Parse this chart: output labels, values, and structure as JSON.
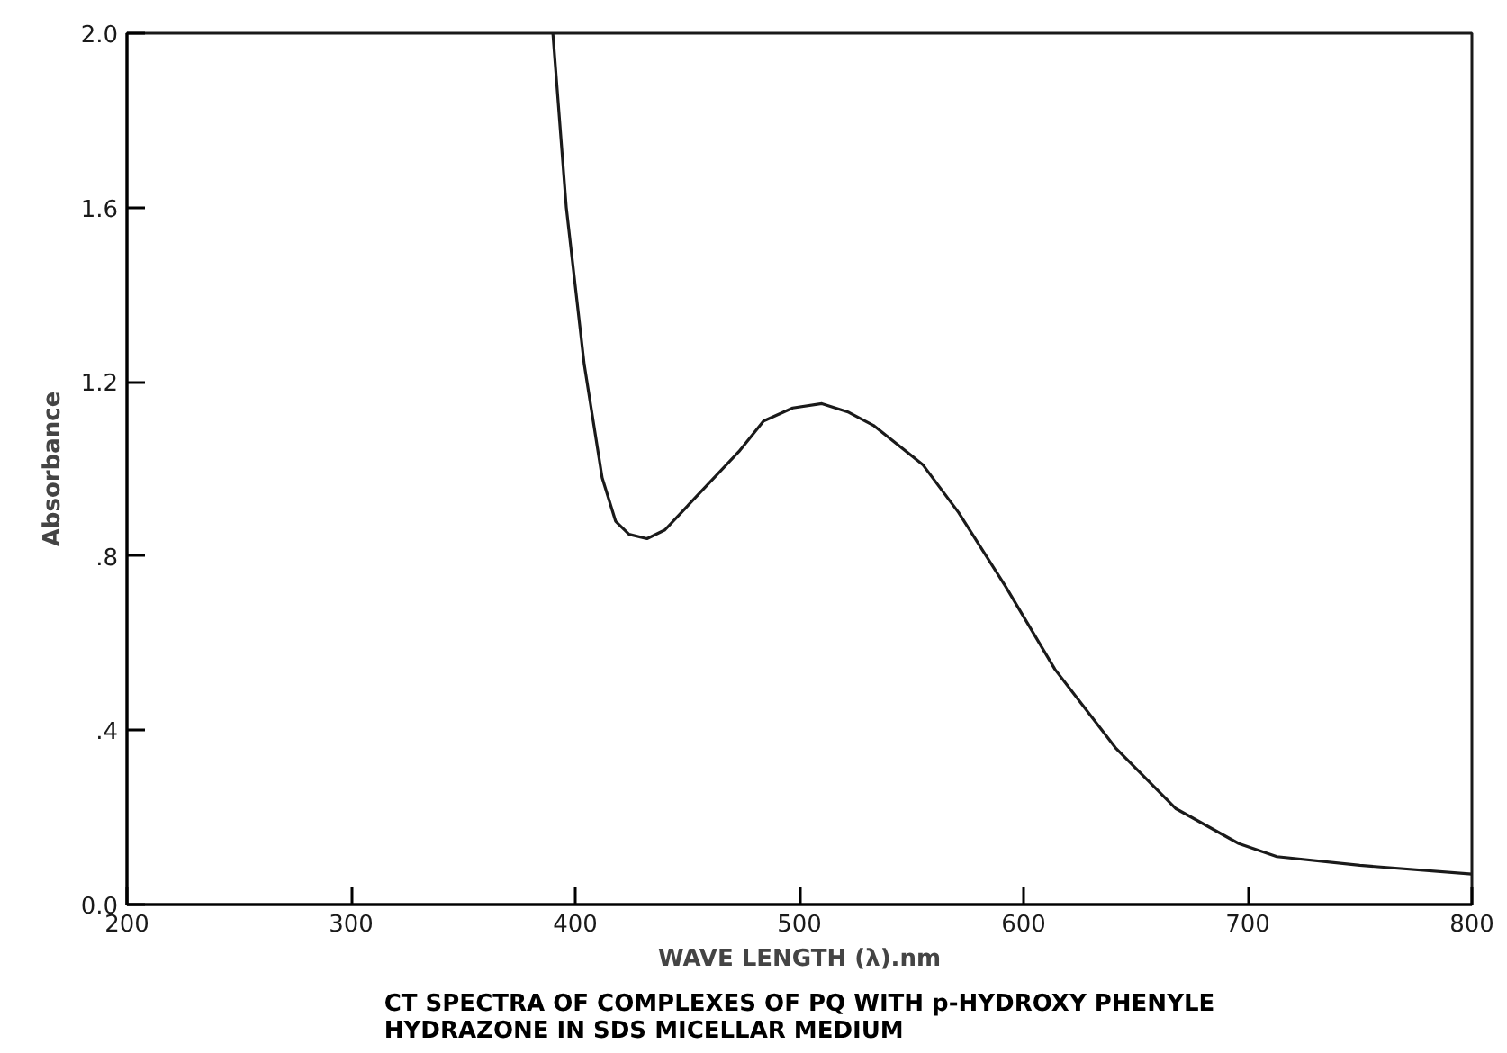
{
  "chart_data": {
    "type": "line",
    "title": "CT SPECTRA OF COMPLEXES OF PQ WITH p-HYDROXY PHENYLE\nHYDRAZONE IN SDS MICELLAR MEDIUM",
    "xlabel": "WAVE LENGTH (λ).nm",
    "ylabel": "Absorbance",
    "series": [
      {
        "color": "#1a1a1a",
        "x": [
          390,
          396,
          404,
          412,
          418,
          424,
          432,
          440,
          451,
          473,
          484,
          497,
          510,
          522,
          533,
          555,
          571,
          592,
          614,
          641,
          668,
          696,
          713,
          750,
          800
        ],
        "values": [
          2.0,
          1.6,
          1.24,
          0.98,
          0.88,
          0.85,
          0.84,
          0.86,
          0.92,
          1.04,
          1.11,
          1.14,
          1.15,
          1.13,
          1.1,
          1.01,
          0.9,
          0.73,
          0.54,
          0.36,
          0.22,
          0.14,
          0.11,
          0.09,
          0.07
        ]
      }
    ],
    "xlim": [
      200,
      800
    ],
    "ylim": [
      0,
      2.0
    ],
    "xticks": [
      200,
      300,
      400,
      500,
      600,
      700,
      800
    ],
    "yticks": [
      {
        "value": 0,
        "label": "0.0"
      },
      {
        "value": 0.4,
        "label": ".4"
      },
      {
        "value": 0.8,
        "label": ".8"
      },
      {
        "value": 1.2,
        "label": "1.2"
      },
      {
        "value": 1.6,
        "label": "1.6"
      },
      {
        "value": 2.0,
        "label": "2.0"
      }
    ],
    "grid": false,
    "marker": "none",
    "line_style": "solid"
  }
}
